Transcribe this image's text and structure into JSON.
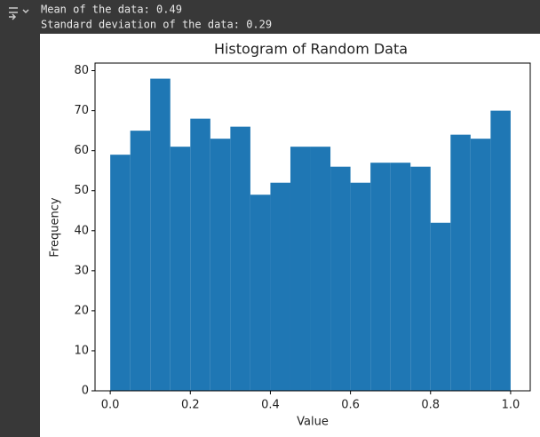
{
  "output_lines": [
    "Mean of the data: 0.49",
    "Standard deviation of the data: 0.29"
  ],
  "chart_data": {
    "type": "histogram",
    "title": "Histogram of Random Data",
    "x_label": "Value",
    "y_label": "Frequency",
    "bins": [
      0,
      0.05,
      0.1,
      0.15,
      0.2,
      0.25,
      0.3,
      0.35,
      0.4,
      0.45,
      0.5,
      0.55,
      0.6,
      0.65,
      0.7,
      0.75,
      0.8,
      0.85,
      0.9,
      0.95,
      1
    ],
    "values": [
      59,
      65,
      78,
      61,
      68,
      63,
      66,
      49,
      52,
      61,
      61,
      56,
      52,
      57,
      57,
      56,
      42,
      64,
      63,
      70
    ],
    "color": "#1f77b4",
    "xlim": [
      -0.038,
      1.049
    ],
    "ylim": [
      0,
      81.9
    ],
    "xticks": [
      {
        "value": 0,
        "label": "0.0"
      },
      0.2,
      0.4,
      0.6,
      0.8,
      {
        "value": 1,
        "label": "1.0"
      }
    ],
    "yticks": [
      0,
      10,
      20,
      30,
      40,
      50,
      60,
      70,
      80
    ]
  }
}
